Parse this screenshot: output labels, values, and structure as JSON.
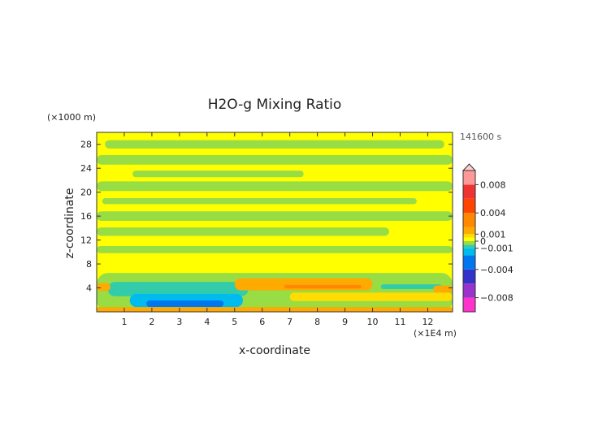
{
  "chart_data": {
    "type": "heatmap",
    "title": "H2O-g Mixing Ratio",
    "xlabel": "x-coordinate",
    "ylabel": "z-coordinate",
    "x_unit": "(×1E4 m)",
    "y_unit": "(×1000 m)",
    "time_label": "141600 s",
    "xlim": [
      0,
      12.9
    ],
    "ylim": [
      0,
      30
    ],
    "x_ticks": [
      1,
      2,
      3,
      4,
      5,
      6,
      7,
      8,
      9,
      10,
      11,
      12
    ],
    "y_ticks": [
      4,
      8,
      12,
      16,
      20,
      24,
      28
    ],
    "colorbar": {
      "min": -0.01,
      "max": 0.01,
      "tick_values": [
        0.008,
        0.004,
        0.001,
        0,
        -0.001,
        -0.004,
        -0.008
      ],
      "tick_labels": [
        "0.008",
        "0.004",
        "0.001",
        "0",
        "−0.001",
        "−0.004",
        "−0.008"
      ],
      "colors": [
        {
          "from": -0.01,
          "to": -0.008,
          "color": "#ff33cc"
        },
        {
          "from": -0.008,
          "to": -0.006,
          "color": "#9933cc"
        },
        {
          "from": -0.006,
          "to": -0.004,
          "color": "#3333cc"
        },
        {
          "from": -0.004,
          "to": -0.002,
          "color": "#0077ee"
        },
        {
          "from": -0.002,
          "to": -0.001,
          "color": "#00bbee"
        },
        {
          "from": -0.001,
          "to": -0.0005,
          "color": "#33ccaa"
        },
        {
          "from": -0.0005,
          "to": 0,
          "color": "#99dd44"
        },
        {
          "from": 0,
          "to": 0.0005,
          "color": "#ffff00"
        },
        {
          "from": 0.0005,
          "to": 0.001,
          "color": "#ffdd00"
        },
        {
          "from": 0.001,
          "to": 0.002,
          "color": "#ffaa00"
        },
        {
          "from": 0.002,
          "to": 0.004,
          "color": "#ff8800"
        },
        {
          "from": 0.004,
          "to": 0.006,
          "color": "#ff4400"
        },
        {
          "from": 0.006,
          "to": 0.008,
          "color": "#ee3333"
        },
        {
          "from": 0.008,
          "to": 0.01,
          "color": "#ff9999"
        }
      ]
    },
    "regions": [
      {
        "x": [
          0,
          12.9
        ],
        "z": [
          0,
          30
        ],
        "value": 0.0003
      },
      {
        "x": [
          0.3,
          12.6
        ],
        "z": [
          27.3,
          28.7
        ],
        "value": -0.0002
      },
      {
        "x": [
          0,
          12.9
        ],
        "z": [
          24.6,
          26.2
        ],
        "value": -0.0002
      },
      {
        "x": [
          1.3,
          7.5
        ],
        "z": [
          22.5,
          23.6
        ],
        "value": -0.0002
      },
      {
        "x": [
          0,
          12.9
        ],
        "z": [
          20.2,
          21.8
        ],
        "value": -0.0002
      },
      {
        "x": [
          0.2,
          11.6
        ],
        "z": [
          18.0,
          19.0
        ],
        "value": -0.0002
      },
      {
        "x": [
          0,
          12.9
        ],
        "z": [
          15.2,
          16.8
        ],
        "value": -0.0002
      },
      {
        "x": [
          0,
          10.6
        ],
        "z": [
          12.7,
          14.1
        ],
        "value": -0.0002
      },
      {
        "x": [
          0,
          12.9
        ],
        "z": [
          9.8,
          11.0
        ],
        "value": -0.0002
      },
      {
        "x": [
          0,
          12.9
        ],
        "z": [
          0,
          6.5
        ],
        "value": -0.0002
      },
      {
        "x": [
          0.4,
          5.5
        ],
        "z": [
          2.6,
          5.0
        ],
        "value": -0.0008
      },
      {
        "x": [
          1.2,
          5.3
        ],
        "z": [
          0.8,
          3.0
        ],
        "value": -0.0015
      },
      {
        "x": [
          1.8,
          4.6
        ],
        "z": [
          0.8,
          1.9
        ],
        "value": -0.003
      },
      {
        "x": [
          10.3,
          12.5
        ],
        "z": [
          3.8,
          4.6
        ],
        "value": -0.0008
      },
      {
        "x": [
          5.0,
          10.0
        ],
        "z": [
          3.6,
          5.6
        ],
        "value": 0.0015
      },
      {
        "x": [
          6.8,
          9.6
        ],
        "z": [
          3.9,
          4.5
        ],
        "value": 0.0025
      },
      {
        "x": [
          7.0,
          12.9
        ],
        "z": [
          1.8,
          3.2
        ],
        "value": 0.0007
      },
      {
        "x": [
          0,
          12.9
        ],
        "z": [
          0,
          0.8
        ],
        "value": 0.0018
      },
      {
        "x": [
          0,
          0.5
        ],
        "z": [
          3.5,
          4.8
        ],
        "value": 0.0015
      },
      {
        "x": [
          12.2,
          12.9
        ],
        "z": [
          3.2,
          4.4
        ],
        "value": 0.0015
      }
    ]
  }
}
